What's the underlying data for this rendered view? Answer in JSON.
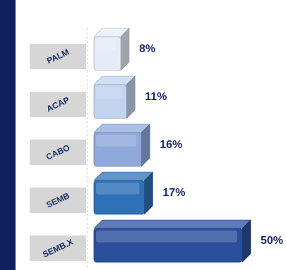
{
  "chart_data": {
    "type": "bar",
    "orientation": "horizontal",
    "categories": [
      "PALM",
      "ACAP",
      "CABO",
      "SEMB",
      "SEMB.X"
    ],
    "values": [
      8,
      11,
      16,
      17,
      50
    ],
    "value_labels": [
      "8%",
      "11%",
      "16%",
      "17%",
      "50%"
    ],
    "colors": [
      "#e3ecf7",
      "#c3d4ef",
      "#8fa9dc",
      "#2f70b6",
      "#2b4f9c"
    ],
    "xlim": [
      0,
      50
    ],
    "title": "",
    "xlabel": "",
    "ylabel": "",
    "grid": false,
    "legend": "none"
  }
}
